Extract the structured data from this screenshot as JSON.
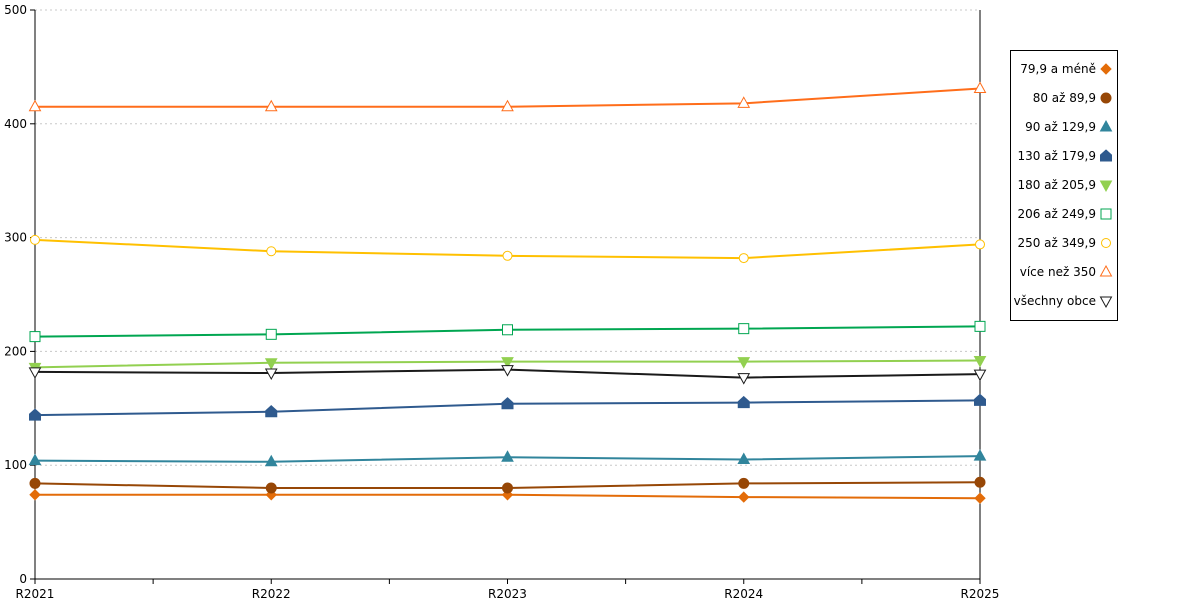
{
  "chart_data": {
    "type": "line",
    "title": "",
    "xlabel": "",
    "ylabel": "",
    "categories": [
      "R2021",
      "R2022",
      "R2023",
      "R2024",
      "R2025"
    ],
    "ylim": [
      0,
      500
    ],
    "yticks": [
      0,
      100,
      200,
      300,
      400,
      500
    ],
    "grid": true,
    "legend_position": "right",
    "series": [
      {
        "name": "79,9 a méně",
        "color": "#e36c09",
        "marker": "diamond",
        "filled": true,
        "values": [
          74,
          74,
          74,
          72,
          71
        ]
      },
      {
        "name": "80 až 89,9",
        "color": "#974706",
        "marker": "circle",
        "filled": true,
        "values": [
          84,
          80,
          80,
          84,
          85
        ]
      },
      {
        "name": "90 až 129,9",
        "color": "#31859c",
        "marker": "triangle-up",
        "filled": true,
        "values": [
          104,
          103,
          107,
          105,
          108
        ]
      },
      {
        "name": "130 až 179,9",
        "color": "#2f5a8e",
        "marker": "house",
        "filled": true,
        "values": [
          144,
          147,
          154,
          155,
          157
        ]
      },
      {
        "name": "180 až 205,9",
        "color": "#92d050",
        "marker": "triangle-down",
        "filled": true,
        "values": [
          186,
          190,
          191,
          191,
          192
        ]
      },
      {
        "name": "206 až 249,9",
        "color": "#00a651",
        "marker": "square",
        "filled": false,
        "values": [
          213,
          215,
          219,
          220,
          222
        ]
      },
      {
        "name": "250 až 349,9",
        "color": "#ffc000",
        "marker": "circle",
        "filled": false,
        "values": [
          298,
          288,
          284,
          282,
          294
        ]
      },
      {
        "name": "více než 350",
        "color": "#ff6d1a",
        "marker": "triangle-up",
        "filled": false,
        "values": [
          415,
          415,
          415,
          418,
          431
        ]
      },
      {
        "name": "všechny obce",
        "color": "#1a1a1a",
        "marker": "triangle-down",
        "filled": false,
        "values": [
          182,
          181,
          184,
          177,
          180
        ]
      }
    ]
  }
}
